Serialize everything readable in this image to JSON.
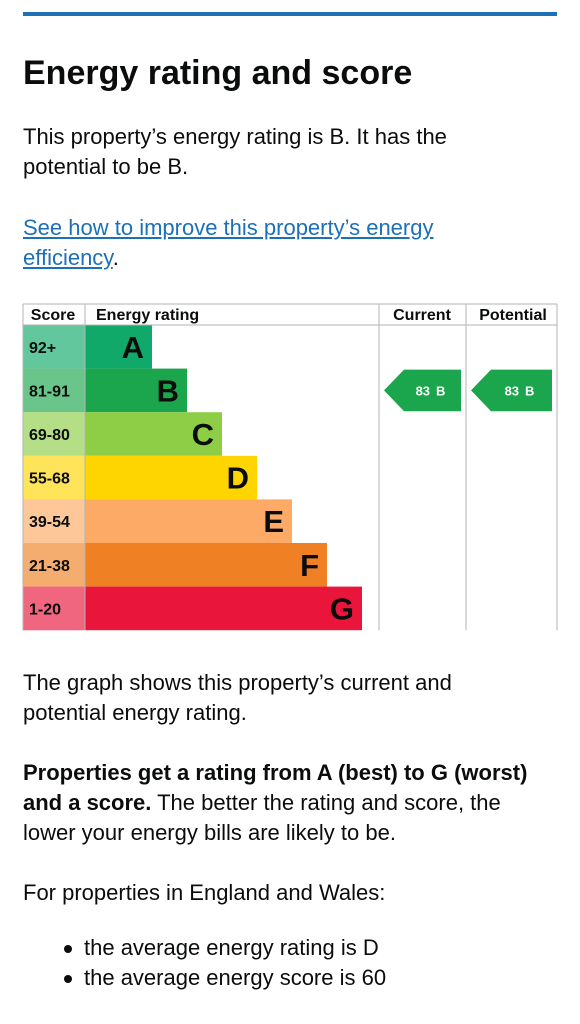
{
  "heading": "Energy rating and score",
  "intro": "This property’s energy rating is B. It has the potential to be B.",
  "link": {
    "text": "See how to improve this property’s energy efficiency",
    "suffix": "."
  },
  "rating_chart": {
    "headers": {
      "score": "Score",
      "rating": "Energy rating",
      "current": "Current",
      "potential": "Potential"
    },
    "bands": [
      {
        "score": "92+",
        "letter": "A",
        "color": "#10a96a"
      },
      {
        "score": "81-91",
        "letter": "B",
        "color": "#1ba64d"
      },
      {
        "score": "69-80",
        "letter": "C",
        "color": "#8dce46"
      },
      {
        "score": "55-68",
        "letter": "D",
        "color": "#ffd500"
      },
      {
        "score": "39-54",
        "letter": "E",
        "color": "#fcaa65"
      },
      {
        "score": "21-38",
        "letter": "F",
        "color": "#ef8023"
      },
      {
        "score": "1-20",
        "letter": "G",
        "color": "#e9153b"
      }
    ],
    "current": {
      "score": "83",
      "letter": "B"
    },
    "potential": {
      "score": "83",
      "letter": "B"
    }
  },
  "explanation": "The graph shows this property’s current and potential energy rating.",
  "rating_info": {
    "bold": "Properties get a rating from A (best) to G (worst) and a score.",
    "text": "The better the rating and score, the lower your energy bills are likely to be."
  },
  "averages_intro": "For properties in England and Wales:",
  "averages": [
    "the average energy rating is D",
    "the average energy score is 60"
  ]
}
